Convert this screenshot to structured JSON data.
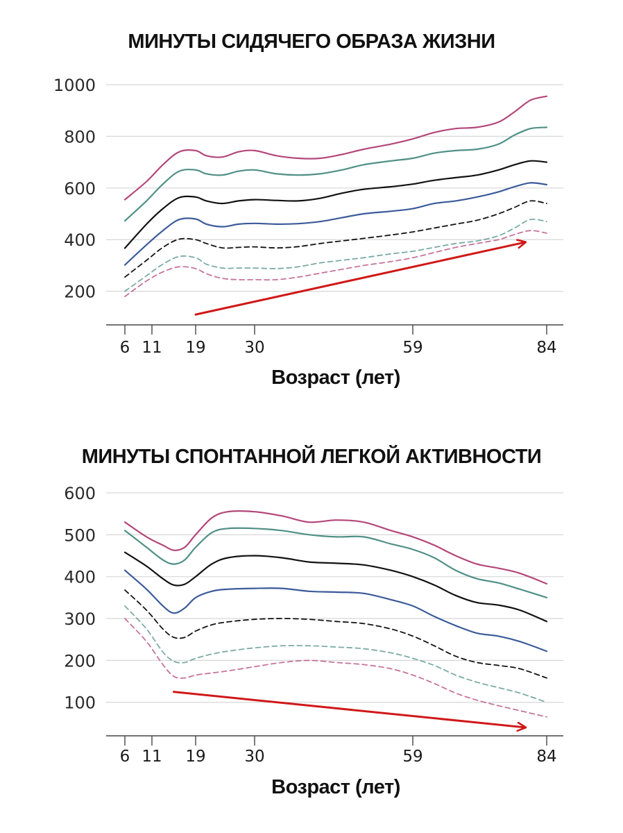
{
  "colors": {
    "pink": "#b3467a",
    "teal": "#4f8f86",
    "black": "#111111",
    "blue": "#3b5a99",
    "arrow": "#d01818",
    "grid": "#d7d7d7",
    "axis": "#444444"
  },
  "chart_data": [
    {
      "type": "line",
      "title": "МИНУТЫ СИДЯЧЕГО ОБРАЗА ЖИЗНИ",
      "xlabel": "Возраст (лет)",
      "ylabel": "",
      "x_ticks": [
        6,
        11,
        19,
        30,
        59,
        84
      ],
      "y_ticks": [
        200,
        400,
        600,
        800,
        1000
      ],
      "ylim": [
        70,
        1000
      ],
      "xlim": [
        4,
        87
      ],
      "trend_arrow": {
        "from": [
          19,
          110
        ],
        "to": [
          80,
          390
        ],
        "direction": "up"
      },
      "series": [
        {
          "name": "solid-pink",
          "style": "solid",
          "color": "pink",
          "x": [
            6,
            10,
            13,
            16,
            19,
            21,
            24,
            27,
            30,
            34,
            38,
            42,
            46,
            50,
            55,
            59,
            63,
            67,
            71,
            75,
            78,
            81,
            84
          ],
          "values": [
            555,
            625,
            690,
            740,
            745,
            725,
            720,
            740,
            745,
            725,
            715,
            715,
            730,
            750,
            770,
            790,
            815,
            830,
            835,
            855,
            895,
            940,
            955
          ]
        },
        {
          "name": "solid-teal",
          "style": "solid",
          "color": "teal",
          "x": [
            6,
            10,
            13,
            16,
            19,
            21,
            24,
            27,
            30,
            34,
            38,
            42,
            46,
            50,
            55,
            59,
            63,
            67,
            71,
            75,
            78,
            81,
            84
          ],
          "values": [
            473,
            550,
            615,
            665,
            670,
            655,
            650,
            665,
            670,
            655,
            650,
            655,
            670,
            690,
            705,
            715,
            735,
            745,
            750,
            770,
            805,
            830,
            835
          ]
        },
        {
          "name": "solid-black",
          "style": "solid",
          "color": "black",
          "x": [
            6,
            10,
            13,
            16,
            19,
            21,
            24,
            27,
            30,
            34,
            38,
            42,
            46,
            50,
            55,
            59,
            63,
            67,
            71,
            75,
            78,
            81,
            84
          ],
          "values": [
            367,
            460,
            520,
            563,
            565,
            550,
            540,
            550,
            555,
            552,
            550,
            560,
            580,
            595,
            605,
            615,
            630,
            640,
            650,
            670,
            690,
            705,
            700
          ]
        },
        {
          "name": "solid-blue",
          "style": "solid",
          "color": "blue",
          "x": [
            6,
            10,
            13,
            16,
            19,
            21,
            24,
            27,
            30,
            34,
            38,
            42,
            46,
            50,
            55,
            59,
            63,
            67,
            71,
            75,
            78,
            81,
            84
          ],
          "values": [
            302,
            380,
            435,
            478,
            480,
            460,
            450,
            460,
            463,
            460,
            462,
            470,
            485,
            500,
            510,
            520,
            540,
            550,
            565,
            585,
            605,
            620,
            613
          ]
        },
        {
          "name": "dashed-black",
          "style": "dashed",
          "color": "black",
          "x": [
            6,
            10,
            13,
            16,
            19,
            21,
            24,
            27,
            30,
            34,
            38,
            42,
            46,
            50,
            55,
            59,
            63,
            67,
            71,
            75,
            78,
            81,
            84
          ],
          "values": [
            255,
            320,
            370,
            402,
            400,
            385,
            368,
            370,
            372,
            368,
            373,
            385,
            395,
            405,
            418,
            430,
            445,
            460,
            475,
            500,
            525,
            550,
            540
          ]
        },
        {
          "name": "dashed-teal",
          "style": "dashed",
          "color": "teal",
          "x": [
            6,
            10,
            13,
            16,
            19,
            21,
            24,
            27,
            30,
            34,
            38,
            42,
            46,
            50,
            55,
            59,
            63,
            67,
            71,
            75,
            78,
            81,
            84
          ],
          "values": [
            200,
            260,
            305,
            335,
            330,
            305,
            290,
            290,
            290,
            288,
            295,
            310,
            320,
            330,
            345,
            355,
            370,
            385,
            395,
            415,
            445,
            478,
            470
          ]
        },
        {
          "name": "dashed-pink",
          "style": "dashed",
          "color": "pink",
          "x": [
            6,
            10,
            13,
            16,
            19,
            21,
            24,
            27,
            30,
            34,
            38,
            42,
            46,
            50,
            55,
            59,
            63,
            67,
            71,
            75,
            78,
            81,
            84
          ],
          "values": [
            180,
            240,
            275,
            295,
            288,
            268,
            250,
            245,
            245,
            245,
            255,
            270,
            285,
            300,
            315,
            330,
            350,
            370,
            385,
            400,
            420,
            435,
            425
          ]
        }
      ]
    },
    {
      "type": "line",
      "title": "МИНУТЫ СПОНТАННОЙ ЛЕГКОЙ АКТИВНОСТИ",
      "xlabel": "Возраст (лет)",
      "ylabel": "",
      "x_ticks": [
        6,
        11,
        19,
        30,
        59,
        84
      ],
      "y_ticks": [
        100,
        200,
        300,
        400,
        500,
        600
      ],
      "ylim": [
        20,
        600
      ],
      "xlim": [
        4,
        87
      ],
      "trend_arrow": {
        "from": [
          15,
          125
        ],
        "to": [
          80,
          40
        ],
        "direction": "down"
      },
      "series": [
        {
          "name": "solid-pink",
          "style": "solid",
          "color": "pink",
          "x": [
            6,
            10,
            13,
            15,
            17,
            19,
            22,
            25,
            30,
            35,
            40,
            45,
            50,
            55,
            59,
            63,
            67,
            71,
            75,
            79,
            84
          ],
          "values": [
            530,
            495,
            475,
            463,
            470,
            500,
            540,
            555,
            555,
            545,
            530,
            535,
            530,
            510,
            495,
            475,
            450,
            430,
            420,
            408,
            383
          ]
        },
        {
          "name": "solid-teal",
          "style": "solid",
          "color": "teal",
          "x": [
            6,
            10,
            13,
            15,
            17,
            19,
            22,
            25,
            30,
            35,
            40,
            45,
            50,
            55,
            59,
            63,
            67,
            71,
            75,
            79,
            84
          ],
          "values": [
            510,
            470,
            440,
            430,
            440,
            470,
            505,
            515,
            515,
            510,
            500,
            495,
            495,
            478,
            465,
            445,
            415,
            395,
            385,
            370,
            350
          ]
        },
        {
          "name": "solid-black",
          "style": "solid",
          "color": "black",
          "x": [
            6,
            10,
            13,
            15,
            17,
            19,
            22,
            25,
            30,
            35,
            40,
            45,
            50,
            55,
            59,
            63,
            67,
            71,
            75,
            79,
            84
          ],
          "values": [
            458,
            425,
            395,
            380,
            382,
            400,
            430,
            445,
            450,
            445,
            435,
            432,
            428,
            415,
            400,
            380,
            355,
            338,
            332,
            320,
            293
          ]
        },
        {
          "name": "solid-blue",
          "style": "solid",
          "color": "blue",
          "x": [
            6,
            10,
            13,
            15,
            17,
            19,
            22,
            25,
            30,
            35,
            40,
            45,
            50,
            55,
            59,
            63,
            67,
            71,
            75,
            79,
            84
          ],
          "values": [
            415,
            370,
            330,
            313,
            325,
            350,
            365,
            370,
            372,
            372,
            365,
            363,
            360,
            345,
            330,
            305,
            283,
            265,
            258,
            245,
            222
          ]
        },
        {
          "name": "dashed-black",
          "style": "dashed",
          "color": "black",
          "x": [
            6,
            10,
            13,
            15,
            17,
            19,
            22,
            25,
            30,
            35,
            40,
            45,
            50,
            55,
            59,
            63,
            67,
            71,
            75,
            79,
            84
          ],
          "values": [
            368,
            320,
            275,
            255,
            255,
            270,
            285,
            292,
            298,
            300,
            298,
            293,
            288,
            275,
            258,
            235,
            210,
            195,
            188,
            180,
            158
          ]
        },
        {
          "name": "dashed-teal",
          "style": "dashed",
          "color": "teal",
          "x": [
            6,
            10,
            13,
            15,
            17,
            19,
            22,
            25,
            30,
            35,
            40,
            45,
            50,
            55,
            59,
            63,
            67,
            71,
            75,
            79,
            84
          ],
          "values": [
            330,
            275,
            220,
            198,
            195,
            205,
            215,
            222,
            230,
            235,
            235,
            232,
            228,
            218,
            205,
            188,
            165,
            148,
            135,
            122,
            100
          ]
        },
        {
          "name": "dashed-pink",
          "style": "dashed",
          "color": "pink",
          "x": [
            6,
            10,
            13,
            15,
            17,
            19,
            22,
            25,
            30,
            35,
            40,
            45,
            50,
            55,
            59,
            63,
            67,
            71,
            75,
            79,
            84
          ],
          "values": [
            300,
            245,
            190,
            162,
            158,
            165,
            170,
            175,
            185,
            195,
            200,
            195,
            190,
            180,
            165,
            145,
            122,
            105,
            92,
            80,
            65
          ]
        }
      ]
    }
  ]
}
